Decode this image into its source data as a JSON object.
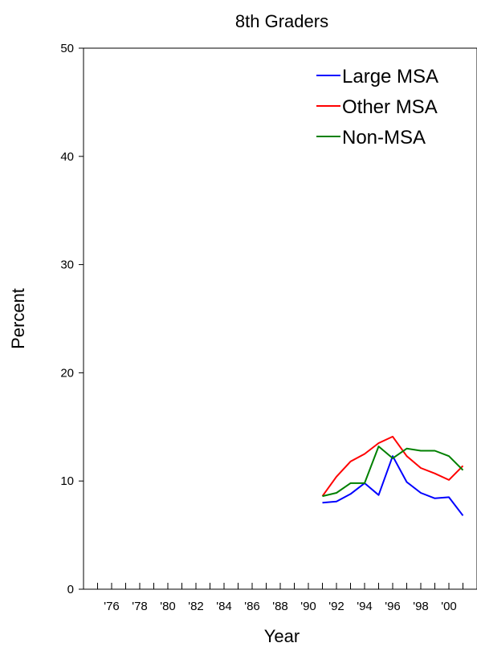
{
  "chart_data": {
    "type": "line",
    "title": "8th Graders",
    "xlabel": "Year",
    "ylabel": "Percent",
    "xlim": [
      1974,
      2002
    ],
    "ylim": [
      0,
      50
    ],
    "x_ticks": [
      1976,
      1978,
      1980,
      1982,
      1984,
      1986,
      1988,
      1990,
      1992,
      1994,
      1996,
      1998,
      2000
    ],
    "x_tick_labels": [
      "'76",
      "'78",
      "'80",
      "'82",
      "'84",
      "'86",
      "'88",
      "'90",
      "'92",
      "'94",
      "'96",
      "'98",
      "'00"
    ],
    "y_ticks": [
      0,
      10,
      20,
      30,
      40,
      50
    ],
    "y_tick_labels": [
      "0",
      "10",
      "20",
      "30",
      "40",
      "50"
    ],
    "grid": false,
    "legend_position": "top-right",
    "x": [
      1991,
      1992,
      1993,
      1994,
      1995,
      1996,
      1997,
      1998,
      1999,
      2000,
      2001
    ],
    "series": [
      {
        "name": "Large MSA",
        "color": "#0000ff",
        "values": [
          8.0,
          8.1,
          8.8,
          9.8,
          8.7,
          12.3,
          9.9,
          8.9,
          8.4,
          8.5,
          6.8
        ]
      },
      {
        "name": "Other MSA",
        "color": "#ff0000",
        "values": [
          8.6,
          10.4,
          11.8,
          12.5,
          13.5,
          14.1,
          12.3,
          11.2,
          10.7,
          10.1,
          11.4
        ]
      },
      {
        "name": "Non-MSA",
        "color": "#008000",
        "values": [
          8.6,
          8.9,
          9.8,
          9.8,
          13.2,
          12.1,
          13.0,
          12.8,
          12.8,
          12.3,
          11.0
        ]
      }
    ]
  }
}
